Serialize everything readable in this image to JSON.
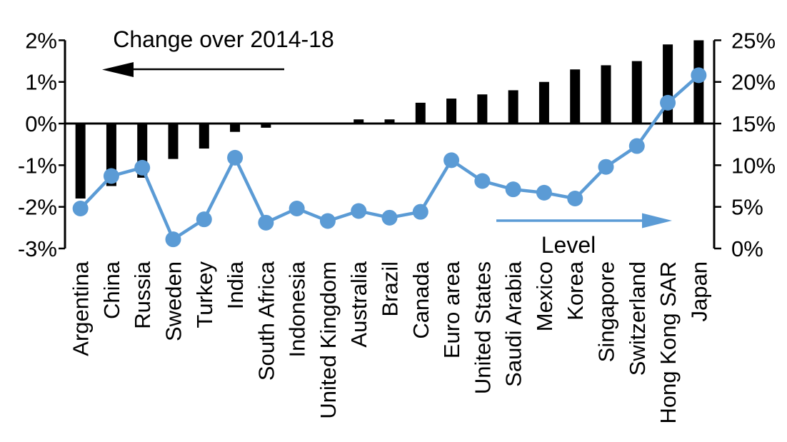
{
  "annotations": {
    "change": {
      "label": "Change over 2014-18"
    },
    "level": {
      "label": "Level"
    }
  },
  "colors": {
    "bar": "#000000",
    "line": "#5b9bd5",
    "axis": "#000000"
  },
  "chart_data": {
    "type": "combo-bar-line-dual-axis",
    "categories": [
      "Argentina",
      "China",
      "Russia",
      "Sweden",
      "Turkey",
      "India",
      "South Africa",
      "Indonesia",
      "United Kingdom",
      "Australia",
      "Brazil",
      "Canada",
      "Euro area",
      "United States",
      "Saudi Arabia",
      "Mexico",
      "Korea",
      "Singapore",
      "Switzerland",
      "Hong Kong SAR",
      "Japan"
    ],
    "series": [
      {
        "name": "Change over 2014-18",
        "type": "bar",
        "axis": "left",
        "color": "#000000",
        "values": [
          -1.8,
          -1.5,
          -1.3,
          -0.85,
          -0.6,
          -0.2,
          -0.1,
          0.0,
          0.0,
          0.1,
          0.1,
          0.5,
          0.6,
          0.7,
          0.8,
          1.0,
          1.3,
          1.4,
          1.5,
          1.9,
          2.0
        ]
      },
      {
        "name": "Level",
        "type": "line",
        "axis": "right",
        "color": "#5b9bd5",
        "values": [
          4.8,
          8.7,
          9.7,
          1.1,
          3.5,
          10.9,
          3.1,
          4.8,
          3.3,
          4.5,
          3.7,
          4.4,
          10.6,
          8.1,
          7.1,
          6.7,
          6.0,
          9.8,
          12.3,
          17.5,
          20.8
        ]
      }
    ],
    "left_axis": {
      "min": -3,
      "max": 2,
      "tick_labels": [
        "2%",
        "1%",
        "0%",
        "-1%",
        "-2%",
        "-3%"
      ]
    },
    "right_axis": {
      "min": 0,
      "max": 25,
      "tick_labels": [
        "25%",
        "20%",
        "15%",
        "10%",
        "5%",
        "0%"
      ]
    },
    "grid": false,
    "zero_line": true,
    "legend_position": "annotated-arrows"
  }
}
